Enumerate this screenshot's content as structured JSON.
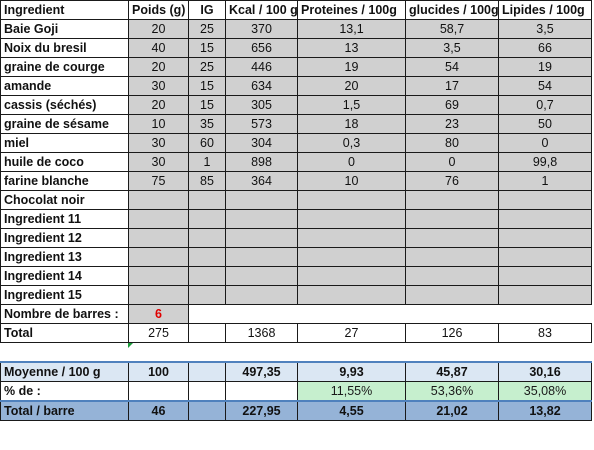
{
  "headers": [
    "Ingredient",
    "Poids  (g)",
    "IG",
    "Kcal / 100 g",
    "Proteines / 100g",
    "glucides / 100g",
    "Lipides / 100g"
  ],
  "ingredients": [
    {
      "name": "Baie Goji",
      "poids": "20",
      "ig": "25",
      "kcal": "370",
      "prot": "13,1",
      "gluc": "58,7",
      "lip": "3,5"
    },
    {
      "name": "Noix du bresil",
      "poids": "40",
      "ig": "15",
      "kcal": "656",
      "prot": "13",
      "gluc": "3,5",
      "lip": "66"
    },
    {
      "name": "graine de courge",
      "poids": "20",
      "ig": "25",
      "kcal": "446",
      "prot": "19",
      "gluc": "54",
      "lip": "19"
    },
    {
      "name": "amande",
      "poids": "30",
      "ig": "15",
      "kcal": "634",
      "prot": "20",
      "gluc": "17",
      "lip": "54"
    },
    {
      "name": "cassis (séchés)",
      "poids": "20",
      "ig": "15",
      "kcal": "305",
      "prot": "1,5",
      "gluc": "69",
      "lip": "0,7"
    },
    {
      "name": "graine de sésame",
      "poids": "10",
      "ig": "35",
      "kcal": "573",
      "prot": "18",
      "gluc": "23",
      "lip": "50"
    },
    {
      "name": "miel",
      "poids": "30",
      "ig": "60",
      "kcal": "304",
      "prot": "0,3",
      "gluc": "80",
      "lip": "0"
    },
    {
      "name": "huile de coco",
      "poids": "30",
      "ig": "1",
      "kcal": "898",
      "prot": "0",
      "gluc": "0",
      "lip": "99,8"
    },
    {
      "name": "farine blanche",
      "poids": "75",
      "ig": "85",
      "kcal": "364",
      "prot": "10",
      "gluc": "76",
      "lip": "1"
    },
    {
      "name": "Chocolat noir",
      "poids": "",
      "ig": "",
      "kcal": "",
      "prot": "",
      "gluc": "",
      "lip": ""
    },
    {
      "name": "Ingredient 11",
      "poids": "",
      "ig": "",
      "kcal": "",
      "prot": "",
      "gluc": "",
      "lip": ""
    },
    {
      "name": "Ingredient 12",
      "poids": "",
      "ig": "",
      "kcal": "",
      "prot": "",
      "gluc": "",
      "lip": ""
    },
    {
      "name": "Ingredient 13",
      "poids": "",
      "ig": "",
      "kcal": "",
      "prot": "",
      "gluc": "",
      "lip": ""
    },
    {
      "name": "Ingredient 14",
      "poids": "",
      "ig": "",
      "kcal": "",
      "prot": "",
      "gluc": "",
      "lip": ""
    },
    {
      "name": "Ingredient 15",
      "poids": "",
      "ig": "",
      "kcal": "",
      "prot": "",
      "gluc": "",
      "lip": ""
    }
  ],
  "nombre_barres": {
    "label": "Nombre de barres :",
    "value": "6"
  },
  "total": {
    "label": "Total",
    "poids": "275",
    "ig": "",
    "kcal": "1368",
    "prot": "27",
    "gluc": "126",
    "lip": "83"
  },
  "moyenne": {
    "label": "Moyenne / 100 g",
    "poids": "100",
    "ig": "",
    "kcal": "497,35",
    "prot": "9,93",
    "gluc": "45,87",
    "lip": "30,16"
  },
  "pourcentage": {
    "label": "% de :",
    "prot": "11,55%",
    "gluc": "53,36%",
    "lip": "35,08%"
  },
  "total_barre": {
    "label": "Total / barre",
    "poids": "46",
    "ig": "",
    "kcal": "227,95",
    "prot": "4,55",
    "gluc": "21,02",
    "lip": "13,82"
  },
  "colors": {
    "input_cell": "#d0d0d0",
    "moyenne_row": "#dbe7f3",
    "total_barre_row": "#95b3d7",
    "percent_green": "#c6efce",
    "barres_value": "#e00000",
    "accent_border": "#4f81bd"
  }
}
